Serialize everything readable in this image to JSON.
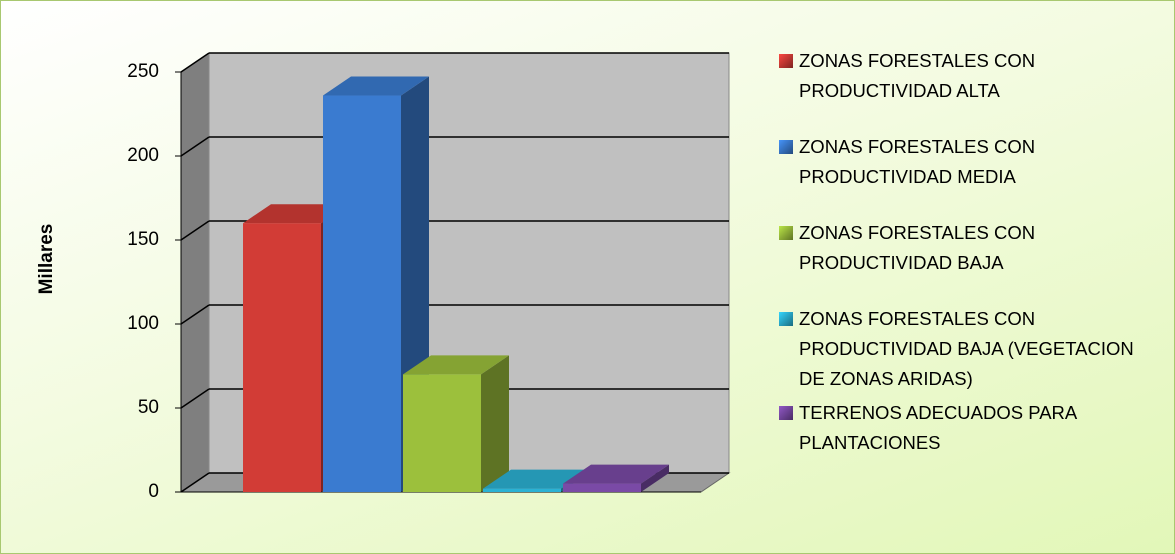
{
  "chart_data": {
    "type": "bar3d",
    "y_label": "Millares",
    "series": [
      {
        "name": "ZONAS FORESTALES CON PRODUCTIVIDAD ALTA",
        "color": "#d23c36",
        "values": [
          160
        ]
      },
      {
        "name": "ZONAS FORESTALES CON PRODUCTIVIDAD MEDIA",
        "color": "#3a7bd0",
        "values": [
          236
        ]
      },
      {
        "name": "ZONAS FORESTALES CON PRODUCTIVIDAD BAJA",
        "color": "#9cc03c",
        "values": [
          70
        ]
      },
      {
        "name": "ZONAS FORESTALES CON PRODUCTIVIDAD BAJA (VEGETACION DE ZONAS ARIDAS)",
        "color": "#2bb2d4",
        "values": [
          2
        ]
      },
      {
        "name": "TERRENOS ADECUADOS PARA PLANTACIONES",
        "color": "#7a4aa6",
        "values": [
          5
        ]
      }
    ],
    "ylim": [
      0,
      250
    ],
    "yticks": [
      0,
      50,
      100,
      150,
      200,
      250
    ],
    "grid": true,
    "legend": "right"
  }
}
